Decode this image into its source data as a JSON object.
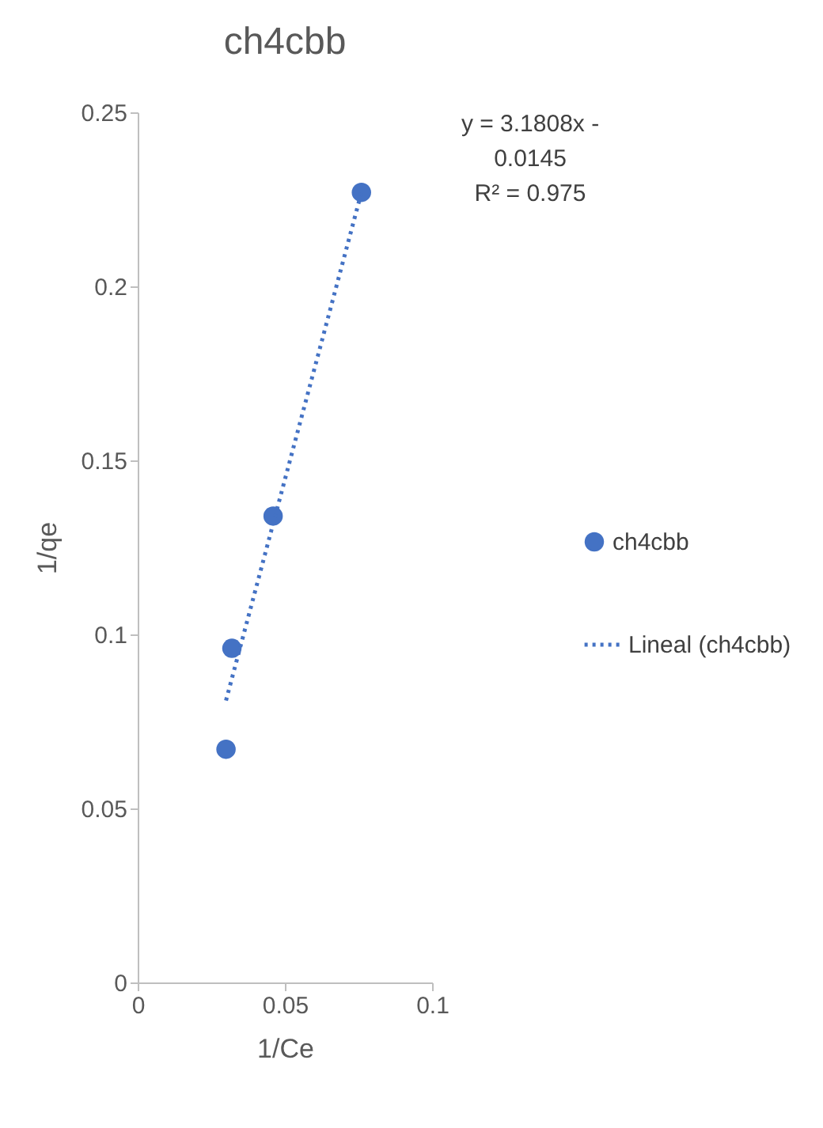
{
  "chart_data": {
    "type": "scatter",
    "title": "ch4cbb",
    "xlabel": "1/Ce",
    "ylabel": "1/qe",
    "xlim": [
      0,
      0.1
    ],
    "xticks": [
      0,
      0.05,
      0.1
    ],
    "ylim": [
      0,
      0.25
    ],
    "yticks": [
      0,
      0.05,
      0.1,
      0.15,
      0.2,
      0.25
    ],
    "grid": false,
    "legend": "right",
    "annotations": [
      "y = 3.1808x -",
      "0.0145",
      "R² = 0.975"
    ],
    "series": [
      {
        "name": "ch4cbb",
        "marker": "circle",
        "color": "#4472c4",
        "x": [
          0.03,
          0.032,
          0.046,
          0.076
        ],
        "values": [
          0.067,
          0.096,
          0.134,
          0.227
        ]
      },
      {
        "name": "Lineal (ch4cbb)",
        "type": "line",
        "line_style": "dotted",
        "marker": "none",
        "color": "#4472c4",
        "x": [
          0.03,
          0.076
        ],
        "values": [
          0.081,
          0.227
        ]
      }
    ]
  }
}
